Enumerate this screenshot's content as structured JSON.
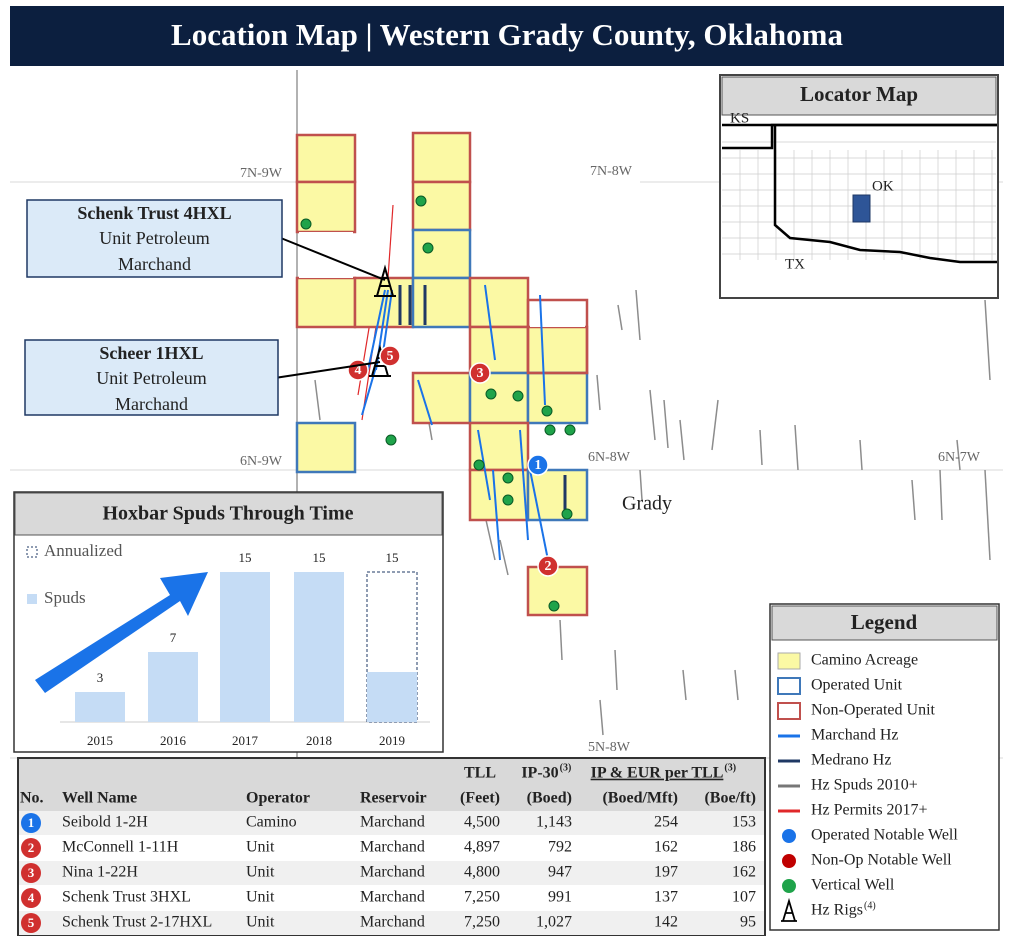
{
  "header": {
    "title": "Location Map | Western Grady County, Oklahoma"
  },
  "map": {
    "township_labels": [
      "7N-9W",
      "7N-8W",
      "6N-9W",
      "6N-8W",
      "6N-7W",
      "5N-8W"
    ],
    "county_label": "Grady",
    "well_markers": [
      "1",
      "2",
      "3",
      "4",
      "5"
    ]
  },
  "callouts": [
    {
      "title": "Schenk Trust 4HXL",
      "lines": [
        "Unit Petroleum",
        "Marchand"
      ]
    },
    {
      "title": "Scheer 1HXL",
      "lines": [
        "Unit Petroleum",
        "Marchand"
      ]
    }
  ],
  "locator_map": {
    "title": "Locator Map",
    "labels": [
      "KS",
      "OK",
      "TX"
    ]
  },
  "chart_data": {
    "type": "bar",
    "title": "Hoxbar Spuds Through Time",
    "categories": [
      "2015",
      "2016",
      "2017",
      "2018",
      "2019"
    ],
    "series": [
      {
        "name": "Annualized",
        "color": "#1f3864",
        "values": [
          null,
          null,
          null,
          null,
          15
        ]
      },
      {
        "name": "Spuds",
        "color": "#c5dcf5",
        "values": [
          3,
          7,
          15,
          15,
          5
        ]
      }
    ]
  },
  "legend": {
    "title": "Legend",
    "items": [
      "Camino Acreage",
      "Operated Unit",
      "Non-Operated Unit",
      "Marchand Hz",
      "Medrano Hz",
      "Hz Spuds 2010+",
      "Hz Permits 2017+",
      "Operated Notable Well",
      "Non-Op Notable Well",
      "Vertical Well",
      "Hz Rigs"
    ],
    "rigs_note": "(4)"
  },
  "table": {
    "header_top": [
      "TLL",
      "IP-30",
      "IP & EUR per TLL"
    ],
    "header_note": "(3)",
    "columns": [
      "No.",
      "Well Name",
      "Operator",
      "Reservoir",
      "(Feet)",
      "(Boed)",
      "(Boed/Mft)",
      "(Boe/ft)"
    ],
    "rows": [
      [
        "1",
        "Seibold 1-2H",
        "Camino",
        "Marchand",
        "4,500",
        "1,143",
        "254",
        "153"
      ],
      [
        "2",
        "McConnell 1-11H",
        "Unit",
        "Marchand",
        "4,897",
        "792",
        "162",
        "186"
      ],
      [
        "3",
        "Nina 1-22H",
        "Unit",
        "Marchand",
        "4,800",
        "947",
        "197",
        "162"
      ],
      [
        "4",
        "Schenk Trust 3HXL",
        "Unit",
        "Marchand",
        "7,250",
        "991",
        "137",
        "107"
      ],
      [
        "5",
        "Schenk Trust 2-17HXL",
        "Unit",
        "Marchand",
        "7,250",
        "1,027",
        "142",
        "95"
      ]
    ]
  }
}
